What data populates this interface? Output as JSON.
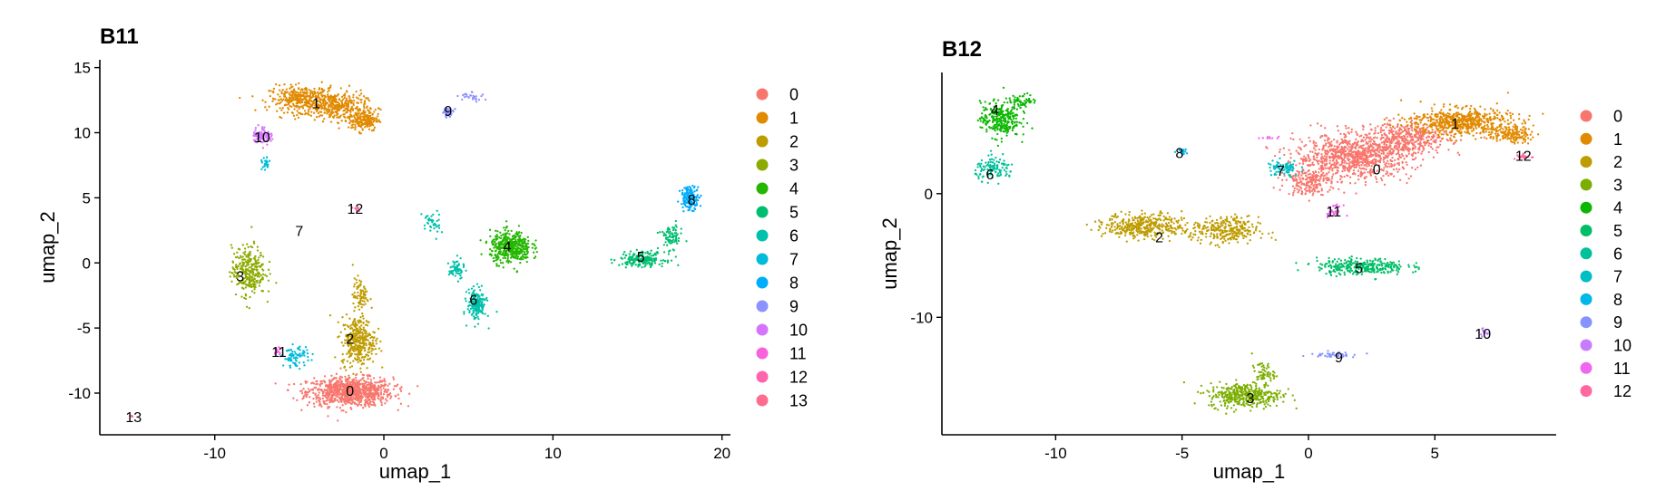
{
  "chart_data": [
    {
      "type": "scatter",
      "title": "B11",
      "xlabel": "umap_1",
      "ylabel": "umap_2",
      "xlim": [
        -16.8,
        20.5
      ],
      "ylim": [
        -13.2,
        15.6
      ],
      "xticks": [
        -10,
        0,
        10,
        20
      ],
      "yticks": [
        -10,
        -5,
        0,
        5,
        10,
        15
      ],
      "grid": false,
      "legend_position": "right",
      "legend": [
        "0",
        "1",
        "2",
        "3",
        "4",
        "5",
        "6",
        "7",
        "8",
        "9",
        "10",
        "11",
        "12",
        "13"
      ],
      "colors": [
        "#F8766D",
        "#E18A00",
        "#BE9C00",
        "#8CAB00",
        "#24B700",
        "#00BE70",
        "#00C1AB",
        "#00BBDA",
        "#00ACFC",
        "#8B93FF",
        "#D575FE",
        "#F962DD",
        "#FF65AC",
        "#FF6C91"
      ],
      "clusters": [
        {
          "label": "0",
          "x": -2.0,
          "y": -9.8
        },
        {
          "label": "1",
          "x": -4.0,
          "y": 12.3
        },
        {
          "label": "2",
          "x": -2.0,
          "y": -5.8
        },
        {
          "label": "3",
          "x": -8.5,
          "y": -1.0
        },
        {
          "label": "4",
          "x": 7.3,
          "y": 1.3
        },
        {
          "label": "5",
          "x": 15.2,
          "y": 0.5
        },
        {
          "label": "6",
          "x": 5.3,
          "y": -2.8
        },
        {
          "label": "7",
          "x": -5.0,
          "y": 2.5
        },
        {
          "label": "8",
          "x": 18.2,
          "y": 4.9
        },
        {
          "label": "9",
          "x": 3.8,
          "y": 11.7
        },
        {
          "label": "10",
          "x": -7.2,
          "y": 9.7
        },
        {
          "label": "11",
          "x": -6.2,
          "y": -6.8
        },
        {
          "label": "12",
          "x": -1.7,
          "y": 4.2
        },
        {
          "label": "13",
          "x": -14.8,
          "y": -11.8
        }
      ]
    },
    {
      "type": "scatter",
      "title": "B12",
      "xlabel": "umap_1",
      "ylabel": "umap_2",
      "xlim": [
        -14.5,
        9.8
      ],
      "ylim": [
        -19.5,
        9.8
      ],
      "xticks": [
        -10,
        -5,
        0,
        5
      ],
      "yticks": [
        -10,
        0
      ],
      "grid": false,
      "legend_position": "right",
      "legend": [
        "0",
        "1",
        "2",
        "3",
        "4",
        "5",
        "6",
        "7",
        "8",
        "9",
        "10",
        "11",
        "12"
      ],
      "colors": [
        "#F8766D",
        "#E18A00",
        "#BE9C00",
        "#7CAE00",
        "#0CB702",
        "#00BE67",
        "#00C19A",
        "#00BFC4",
        "#00B8E7",
        "#8494FF",
        "#C77CFF",
        "#ED68ED",
        "#FF68A1"
      ],
      "clusters": [
        {
          "label": "0",
          "x": 2.7,
          "y": 2.0
        },
        {
          "label": "1",
          "x": 5.8,
          "y": 5.7
        },
        {
          "label": "2",
          "x": -5.9,
          "y": -3.5
        },
        {
          "label": "3",
          "x": -2.3,
          "y": -16.5
        },
        {
          "label": "4",
          "x": -12.4,
          "y": 6.8
        },
        {
          "label": "5",
          "x": 2.0,
          "y": -6.0
        },
        {
          "label": "6",
          "x": -12.6,
          "y": 1.6
        },
        {
          "label": "7",
          "x": -1.1,
          "y": 1.9
        },
        {
          "label": "8",
          "x": -5.1,
          "y": 3.3
        },
        {
          "label": "9",
          "x": 1.2,
          "y": -13.2
        },
        {
          "label": "10",
          "x": 6.9,
          "y": -11.3
        },
        {
          "label": "11",
          "x": 1.0,
          "y": -1.4
        },
        {
          "label": "12",
          "x": 8.5,
          "y": 3.1
        }
      ]
    }
  ]
}
